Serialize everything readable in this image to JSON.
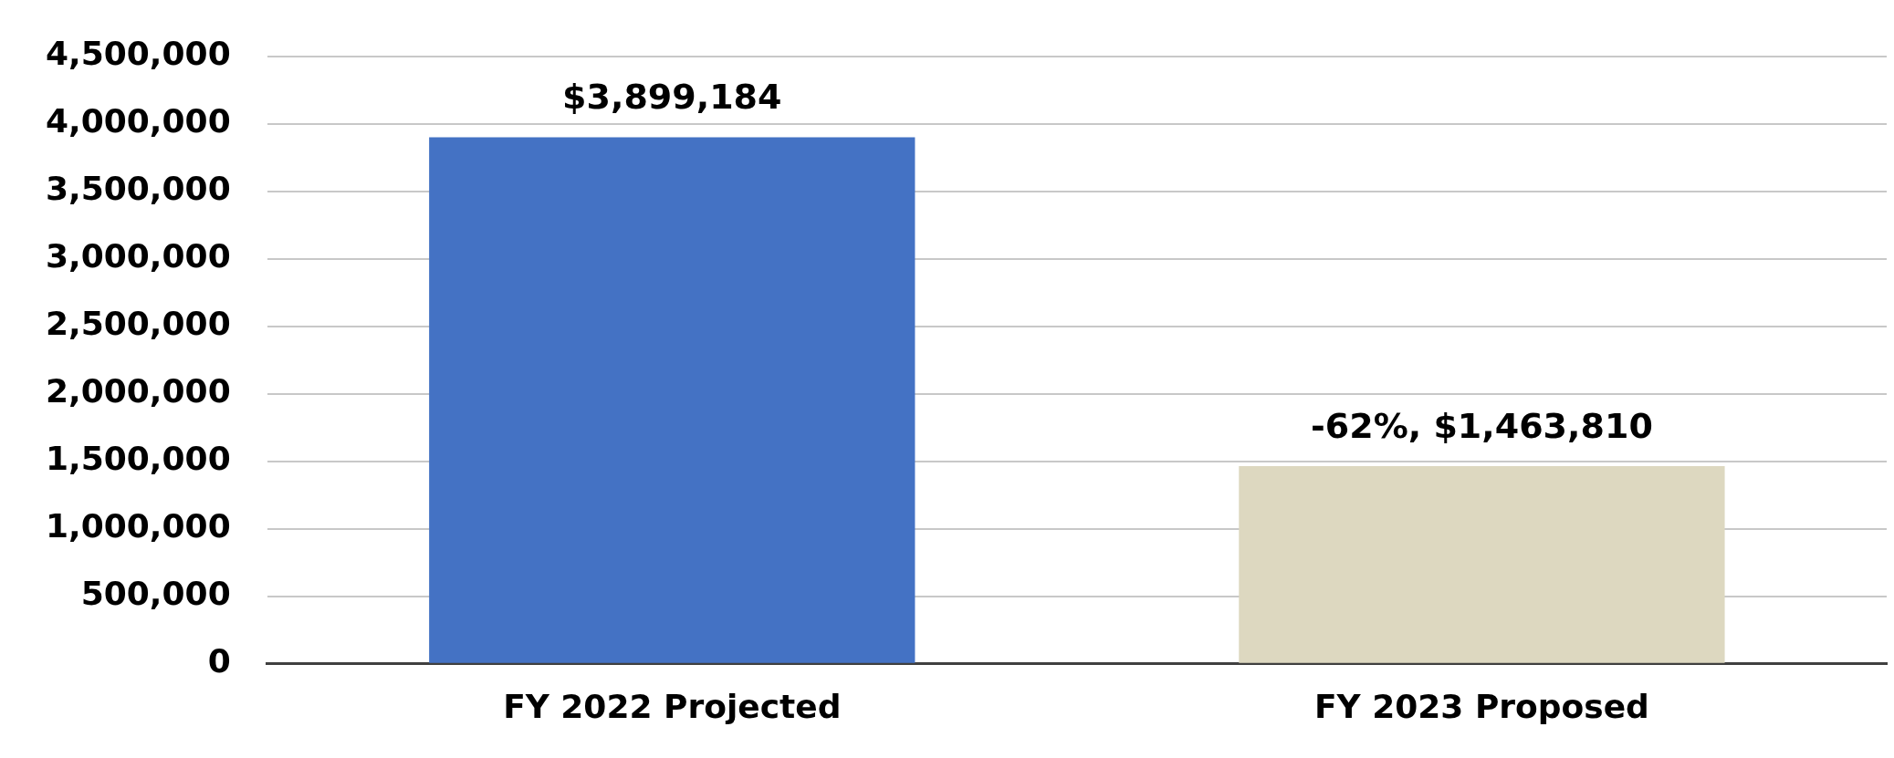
{
  "chart_data": {
    "type": "bar",
    "categories": [
      "FY 2022 Projected",
      "FY 2023 Proposed"
    ],
    "values": [
      3899184,
      1463810
    ],
    "colors": [
      "#4472c4",
      "#ddd8c0"
    ],
    "value_labels": [
      "$3,899,184",
      "-62%, $1,463,810"
    ],
    "ylim": [
      0,
      4500000
    ],
    "yticks": [
      {
        "value": 0,
        "label": "0"
      },
      {
        "value": 500000,
        "label": "500,000"
      },
      {
        "value": 1000000,
        "label": "1,000,000"
      },
      {
        "value": 1500000,
        "label": "1,500,000"
      },
      {
        "value": 2000000,
        "label": "2,000,000"
      },
      {
        "value": 2500000,
        "label": "2,500,000"
      },
      {
        "value": 3000000,
        "label": "3,000,000"
      },
      {
        "value": 3500000,
        "label": "3,500,000"
      },
      {
        "value": 4000000,
        "label": "4,000,000"
      },
      {
        "value": 4500000,
        "label": "4,500,000"
      }
    ],
    "grid": "y"
  }
}
